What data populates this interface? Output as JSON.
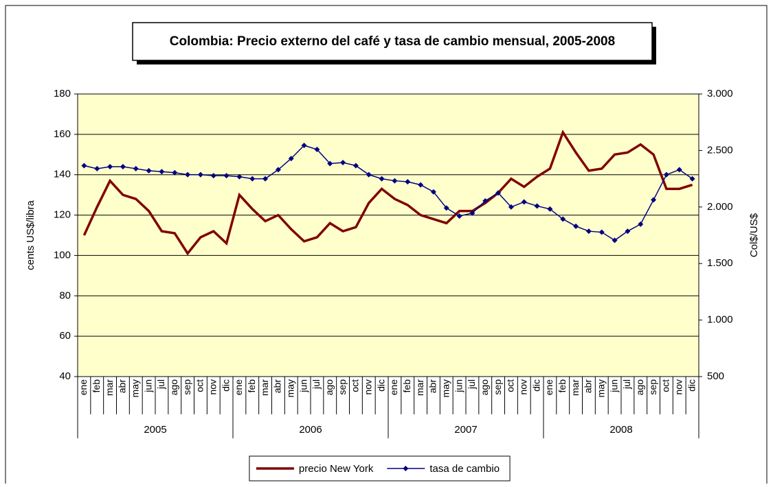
{
  "chart_data": {
    "type": "line",
    "title": "Colombia: Precio externo del café y tasa de cambio mensual, 2005-2008",
    "y_label": "cents US$/libra",
    "y2_label": "Col$/US$",
    "categories": [
      "ene",
      "feb",
      "mar",
      "abr",
      "may",
      "jun",
      "jul",
      "ago",
      "sep",
      "oct",
      "nov",
      "dic",
      "ene",
      "feb",
      "mar",
      "abr",
      "may",
      "jun",
      "jul",
      "ago",
      "sep",
      "oct",
      "nov",
      "dic",
      "ene",
      "feb",
      "mar",
      "abr",
      "may",
      "jun",
      "jul",
      "ago",
      "sep",
      "oct",
      "nov",
      "dic",
      "ene",
      "feb",
      "mar",
      "abr",
      "may",
      "jun",
      "jul",
      "ago",
      "sep",
      "oct",
      "nov",
      "dic"
    ],
    "groups": [
      "2005",
      "2006",
      "2007",
      "2008"
    ],
    "series": [
      {
        "name": "precio New York",
        "color": "#800000",
        "values": [
          110,
          124,
          137,
          130,
          128,
          122,
          112,
          111,
          101,
          109,
          112,
          106,
          130,
          123,
          117,
          120,
          113,
          107,
          109,
          116,
          112,
          114,
          126,
          133,
          128,
          125,
          120,
          118,
          116,
          122,
          122,
          126,
          131,
          138,
          134,
          139,
          143,
          161,
          151,
          142,
          143,
          150,
          151,
          155,
          150,
          133,
          133,
          135
        ]
      },
      {
        "name": "tasa de cambio",
        "color": "#000080",
        "axis": "y2",
        "marker": "diamond",
        "values": [
          2366,
          2339,
          2357,
          2357,
          2339,
          2321,
          2313,
          2304,
          2286,
          2286,
          2277,
          2277,
          2268,
          2250,
          2250,
          2330,
          2429,
          2545,
          2509,
          2384,
          2393,
          2366,
          2286,
          2250,
          2232,
          2223,
          2196,
          2134,
          1991,
          1920,
          1946,
          2054,
          2125,
          2000,
          2045,
          2009,
          1982,
          1893,
          1830,
          1786,
          1777,
          1705,
          1786,
          1848,
          2063,
          2286,
          2330,
          2250
        ]
      }
    ],
    "ylim": [
      40,
      180
    ],
    "yticks": [
      40,
      60,
      80,
      100,
      120,
      140,
      160,
      180
    ],
    "y2lim": [
      500,
      3000
    ],
    "y2ticks": [
      500,
      {
        "value": 1000,
        "label": "1.000"
      },
      {
        "value": 1500,
        "label": "1.500"
      },
      {
        "value": 2000,
        "label": "2.000"
      },
      {
        "value": 2500,
        "label": "2.500"
      },
      {
        "value": 3000,
        "label": "3.000"
      }
    ],
    "grid": true,
    "plot_background": "#ffffcc",
    "legend": "bottom"
  }
}
